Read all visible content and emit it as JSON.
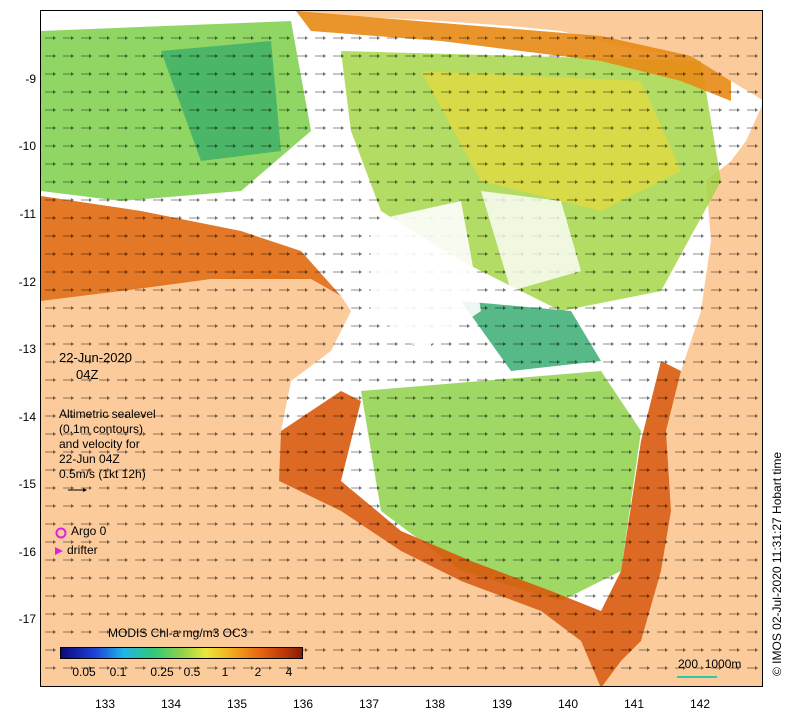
{
  "map": {
    "y_ticks": [
      "-9",
      "-10",
      "-11",
      "-12",
      "-13",
      "-14",
      "-15",
      "-16",
      "-17"
    ],
    "x_ticks": [
      "133",
      "134",
      "135",
      "136",
      "137",
      "138",
      "139",
      "140",
      "141",
      "142"
    ],
    "date": "22-Jun-2020",
    "time": "04Z",
    "legend_lines": [
      "Altimetric sealevel",
      "(0.1m contours)",
      "and velocity for",
      "22-Jun 04Z",
      "0.5m/s (1kt 12h)"
    ],
    "argo_label": "Argo 0",
    "drifter_label": "drifter",
    "colorbar_title": "MODIS Chl-a mg/m3 OC3",
    "colorbar_ticks": [
      "0.05",
      "0.1",
      "0.25",
      "0.5",
      "1",
      "2",
      "4"
    ],
    "scale_label": "200  1000m",
    "credit": "© IMOS 02-Jul-2020 11:31:27 Hobart time",
    "colors": {
      "land": "#fbcb9b",
      "argo": "#e020e0",
      "drifter": "#e020e0",
      "scale": "#2ec9a0"
    }
  }
}
